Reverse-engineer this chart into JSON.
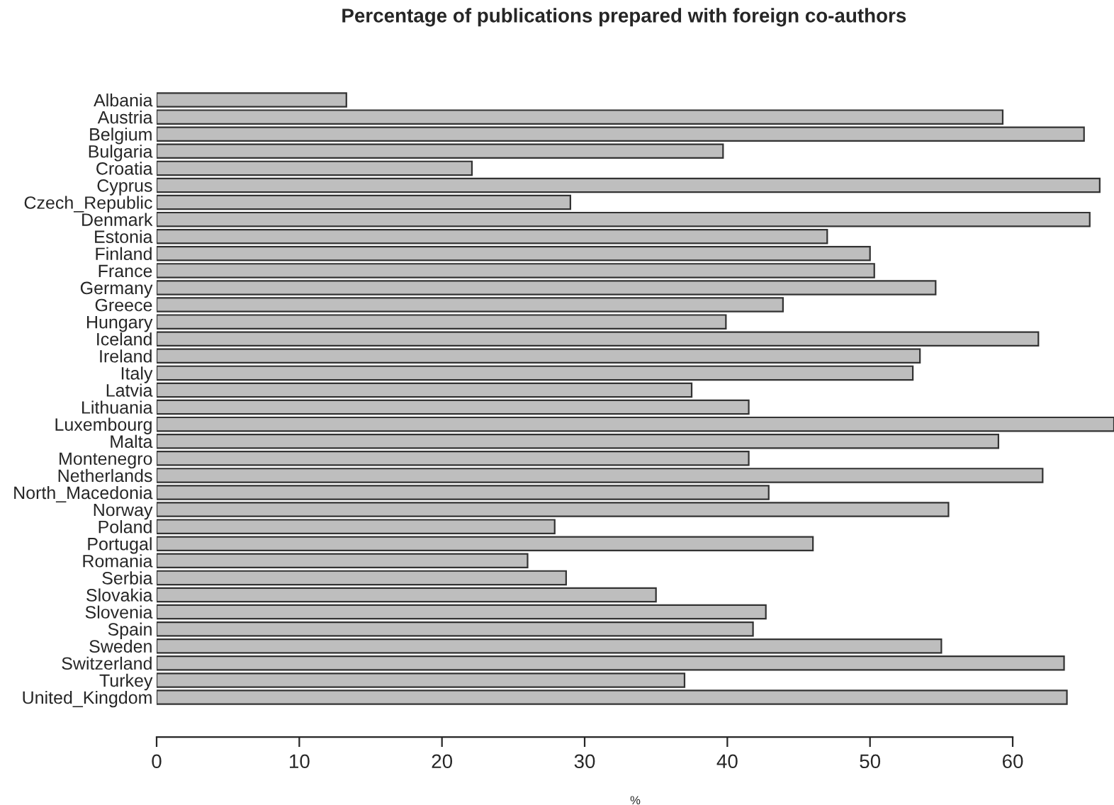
{
  "chart_data": {
    "type": "bar",
    "orientation": "horizontal",
    "title": "Percentage of publications prepared with foreign co-authors",
    "xlabel": "%",
    "categories": [
      "Albania",
      "Austria",
      "Belgium",
      "Bulgaria",
      "Croatia",
      "Cyprus",
      "Czech_Republic",
      "Denmark",
      "Estonia",
      "Finland",
      "France",
      "Germany",
      "Greece",
      "Hungary",
      "Iceland",
      "Ireland",
      "Italy",
      "Latvia",
      "Lithuania",
      "Luxembourg",
      "Malta",
      "Montenegro",
      "Netherlands",
      "North_Macedonia",
      "Norway",
      "Poland",
      "Portugal",
      "Romania",
      "Serbia",
      "Slovakia",
      "Slovenia",
      "Spain",
      "Sweden",
      "Switzerland",
      "Turkey",
      "United_Kingdom"
    ],
    "values": [
      13.3,
      59.3,
      65.0,
      39.7,
      22.1,
      66.1,
      29.0,
      65.4,
      47.0,
      50.0,
      50.3,
      54.6,
      43.9,
      39.9,
      61.8,
      53.5,
      53.0,
      37.5,
      41.5,
      67.1,
      59.0,
      41.5,
      62.1,
      42.9,
      55.5,
      27.9,
      46.0,
      26.0,
      28.7,
      35.0,
      42.7,
      41.8,
      55.0,
      63.6,
      37.0,
      63.8
    ],
    "color": "#bebebe",
    "xlim": [
      0,
      67.1
    ],
    "xticks": [
      0,
      10,
      20,
      30,
      40,
      50,
      60
    ],
    "grid": false,
    "legend": false
  }
}
